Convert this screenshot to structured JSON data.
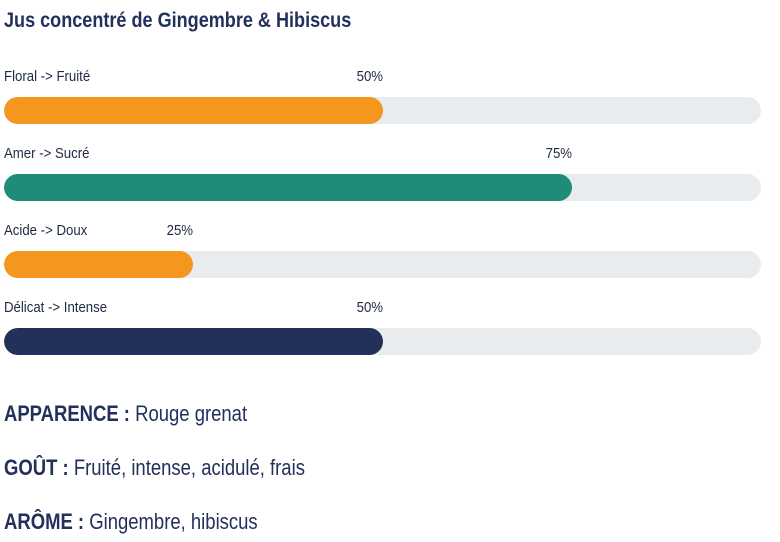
{
  "title": "Jus concentré de Gingembre & Hibiscus",
  "bars": [
    {
      "label": "Floral -> Fruité",
      "percent_text": "50%",
      "value": 50,
      "color": "#f5961f"
    },
    {
      "label": "Amer -> Sucré",
      "percent_text": "75%",
      "value": 75,
      "color": "#1f8c7a"
    },
    {
      "label": "Acide -> Doux",
      "percent_text": "25%",
      "value": 25,
      "color": "#f5961f"
    },
    {
      "label": "Délicat -> Intense",
      "percent_text": "50%",
      "value": 50,
      "color": "#22305a"
    }
  ],
  "track_color": "#e9ecef",
  "details": [
    {
      "key": "APPARENCE :",
      "value": "Rouge grenat"
    },
    {
      "key": "GOÛT :",
      "value": "Fruité, intense, acidulé, frais"
    },
    {
      "key": "ARÔME :",
      "value": "Gingembre, hibiscus"
    }
  ]
}
